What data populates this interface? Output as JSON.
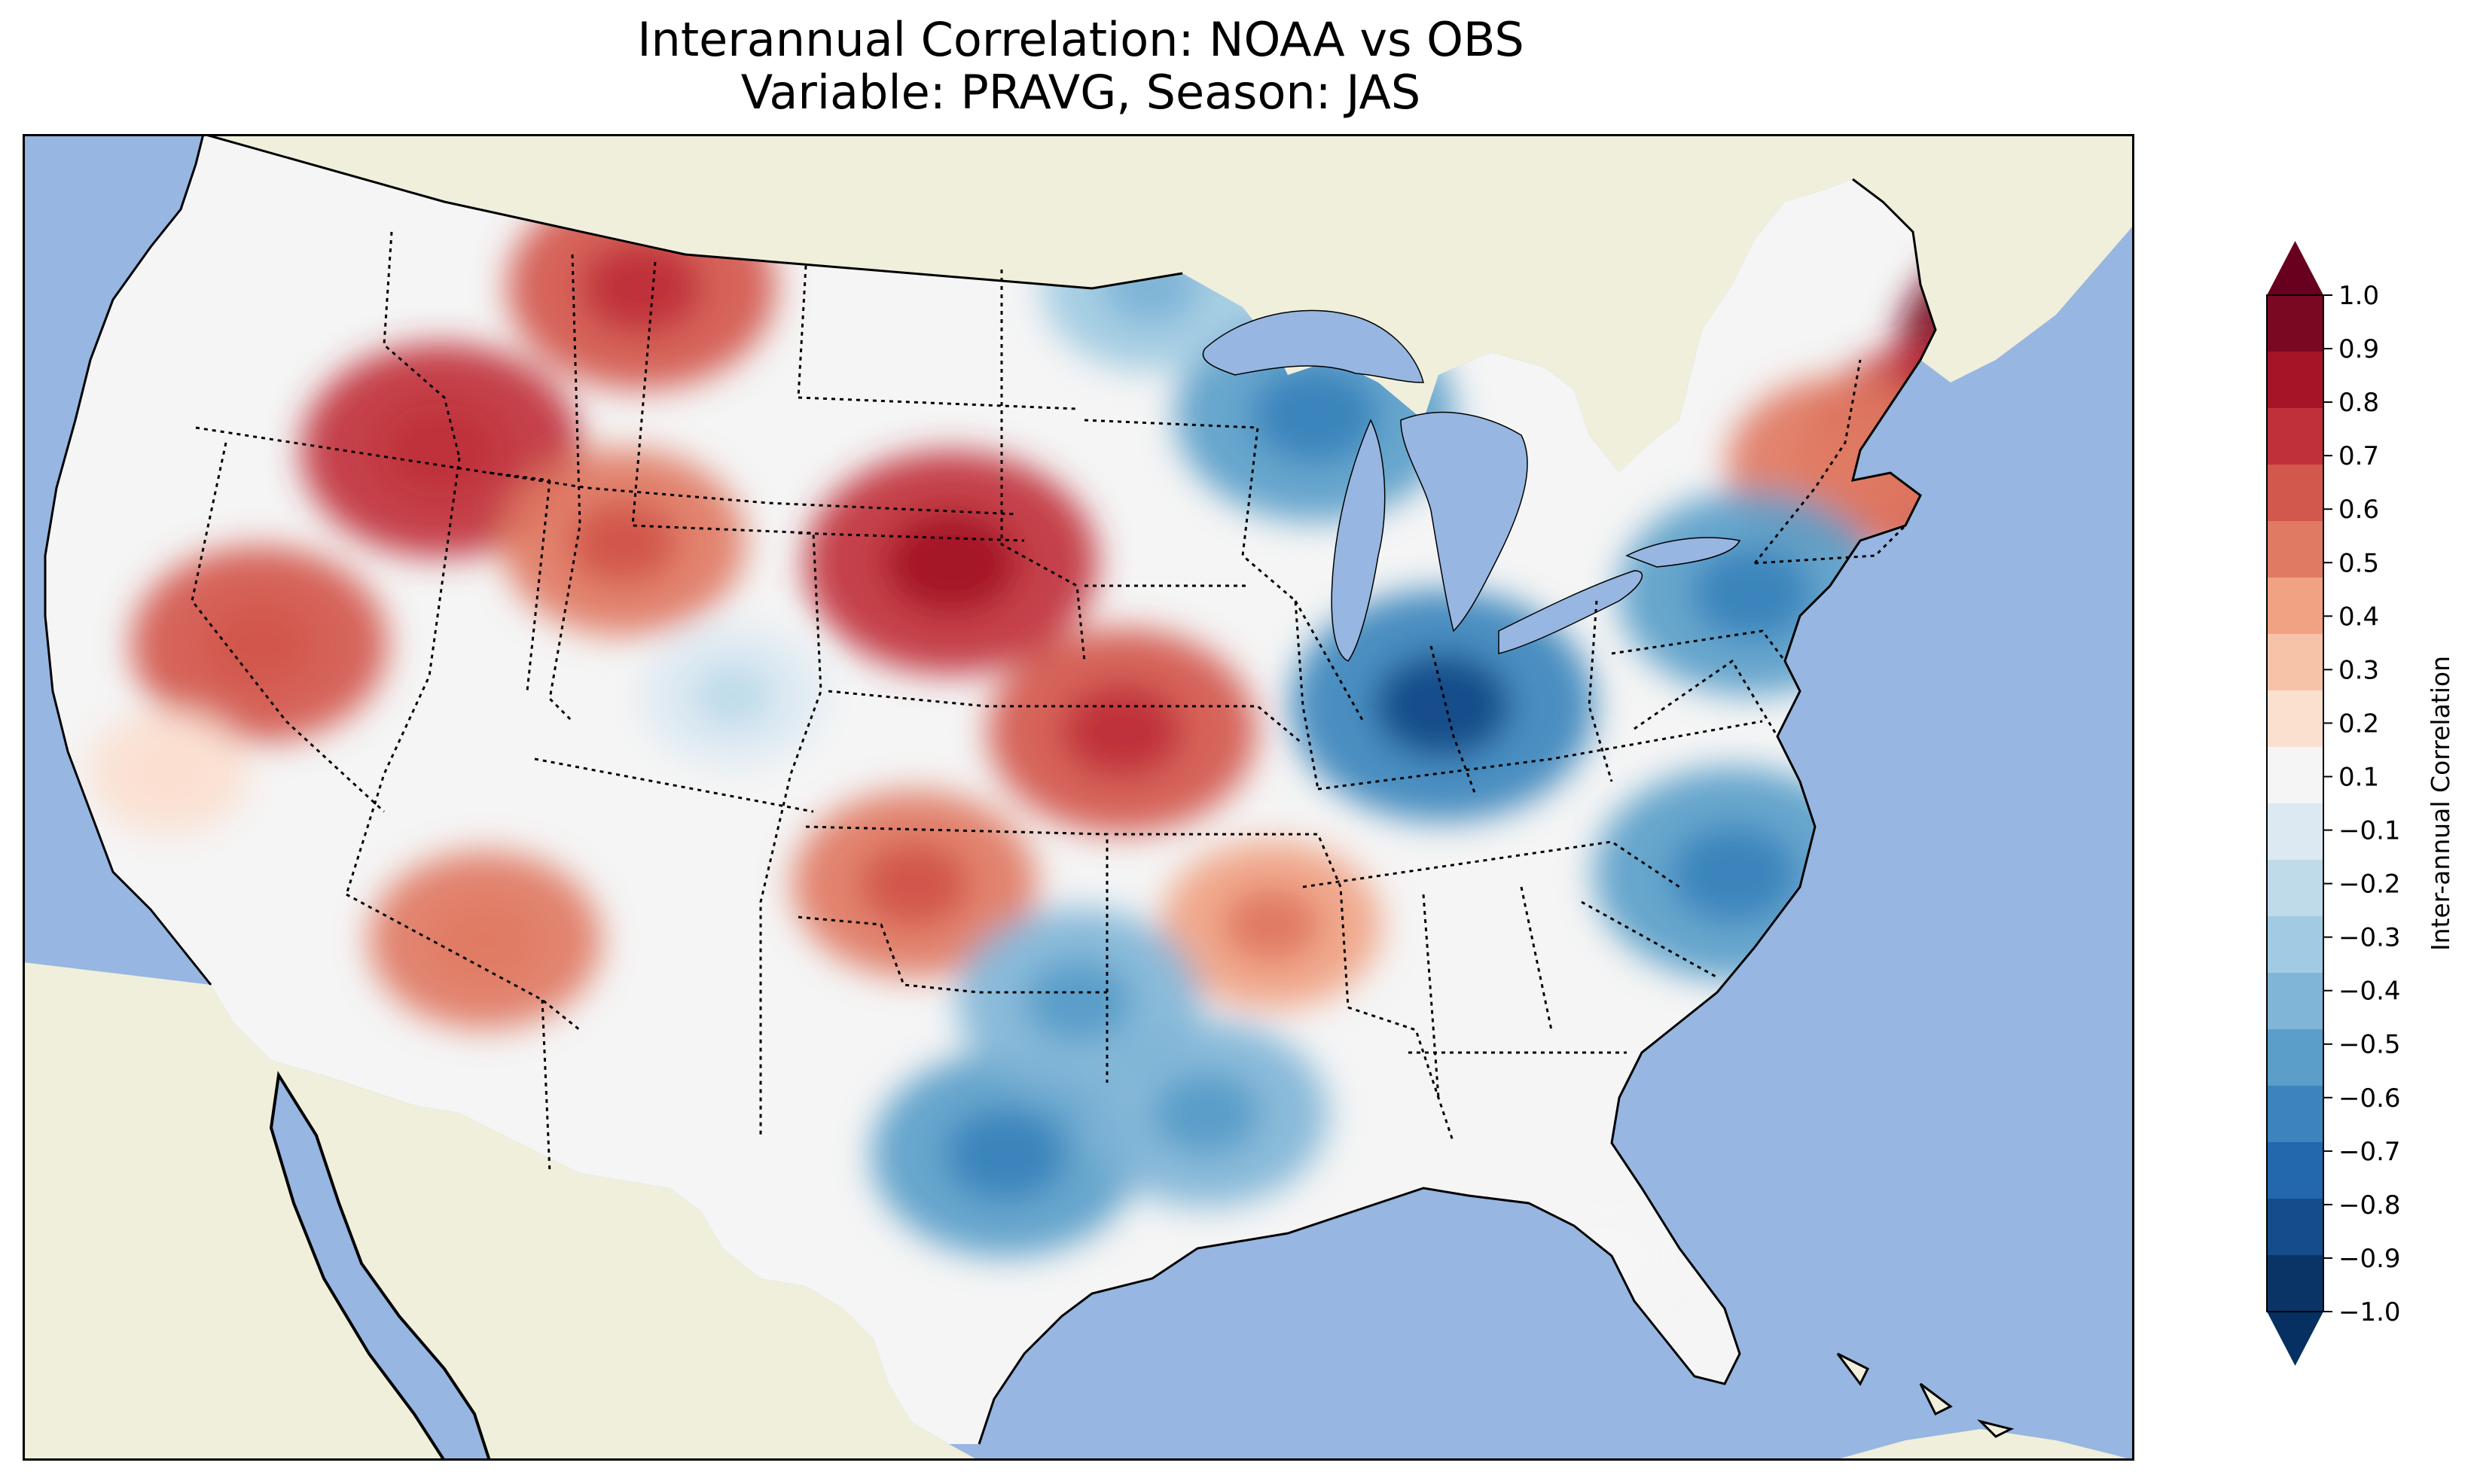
{
  "title": {
    "line1": "Interannual Correlation: NOAA vs OBS",
    "line2": "Variable: PRAVG, Season: JAS"
  },
  "colors": {
    "ocean": "#97b6e1",
    "land": "#efefdb",
    "state_border": "#000000",
    "coast": "#000000"
  },
  "colorbar": {
    "label": "Inter-annual Correlation",
    "ticks": [
      "1.0",
      "0.9",
      "0.8",
      "0.7",
      "0.6",
      "0.5",
      "0.4",
      "0.3",
      "0.2",
      "0.1",
      "−0.1",
      "−0.2",
      "−0.3",
      "−0.4",
      "−0.5",
      "−0.6",
      "−0.7",
      "−0.8",
      "−0.9",
      "−1.0"
    ],
    "colors": [
      "#7a0822",
      "#a51427",
      "#c0303b",
      "#d2574c",
      "#e07a63",
      "#f0a283",
      "#f7c3a8",
      "#fbe0d0",
      "#f5f5f5",
      "#dce9f2",
      "#bfdbea",
      "#a0cbe2",
      "#80b5d7",
      "#5a9ec9",
      "#3b84bc",
      "#2367ac",
      "#154d8a",
      "#0b3466"
    ],
    "extend_max_color": "#67001f",
    "extend_min_color": "#053061"
  },
  "chart_data": {
    "type": "heatmap",
    "title": "Interannual Correlation: NOAA vs OBS / Variable: PRAVG, Season: JAS",
    "colorbar_label": "Inter-annual Correlation",
    "vmin": -1.0,
    "vmax": 1.0,
    "levels": [
      -1.0,
      -0.9,
      -0.8,
      -0.7,
      -0.6,
      -0.5,
      -0.4,
      -0.3,
      -0.2,
      -0.1,
      0.1,
      0.2,
      0.3,
      0.4,
      0.5,
      0.6,
      0.7,
      0.8,
      0.9,
      1.0
    ],
    "regions": [
      {
        "name": "Maine",
        "lon": -69.0,
        "lat": 45.8,
        "value": 0.8
      },
      {
        "name": "Vermont / New Hampshire",
        "lon": -72.3,
        "lat": 43.8,
        "value": 0.6
      },
      {
        "name": "Upstate New York",
        "lon": -75.0,
        "lat": 43.5,
        "value": 0.4
      },
      {
        "name": "Montana central",
        "lon": -108.0,
        "lat": 47.0,
        "value": 0.55
      },
      {
        "name": "Idaho / NW Wyoming",
        "lon": -113.5,
        "lat": 43.8,
        "value": 0.6
      },
      {
        "name": "Southwest Wyoming",
        "lon": -108.5,
        "lat": 42.0,
        "value": 0.45
      },
      {
        "name": "Nebraska",
        "lon": -99.5,
        "lat": 41.6,
        "value": 0.65
      },
      {
        "name": "Northeast Kansas / Missouri border",
        "lon": -94.8,
        "lat": 38.3,
        "value": 0.55
      },
      {
        "name": "Northeast Nevada",
        "lon": -118.5,
        "lat": 40.0,
        "value": 0.5
      },
      {
        "name": "Arizona",
        "lon": -112.3,
        "lat": 34.2,
        "value": 0.4
      },
      {
        "name": "Texas Panhandle / West Oklahoma",
        "lon": -100.5,
        "lat": 35.3,
        "value": 0.45
      },
      {
        "name": "Arkansas / Mississippi",
        "lon": -90.7,
        "lat": 34.5,
        "value": 0.35
      },
      {
        "name": "Wisconsin",
        "lon": -89.5,
        "lat": 44.5,
        "value": -0.6
      },
      {
        "name": "Ohio Valley",
        "lon": -86.0,
        "lat": 38.8,
        "value": -0.7
      },
      {
        "name": "Pennsylvania",
        "lon": -77.5,
        "lat": 41.0,
        "value": -0.55
      },
      {
        "name": "North Carolina",
        "lon": -78.0,
        "lat": 35.5,
        "value": -0.6
      },
      {
        "name": "Central Texas",
        "lon": -98.0,
        "lat": 30.0,
        "value": -0.55
      },
      {
        "name": "North Texas / Oklahoma",
        "lon": -96.0,
        "lat": 33.0,
        "value": -0.45
      },
      {
        "name": "Minnesota",
        "lon": -94.0,
        "lat": 47.0,
        "value": -0.35
      },
      {
        "name": "Louisiana",
        "lon": -92.5,
        "lat": 30.8,
        "value": -0.45
      },
      {
        "name": "Colorado",
        "lon": -105.5,
        "lat": 39.0,
        "value": -0.2
      },
      {
        "name": "California coast",
        "lon": -121.0,
        "lat": 37.5,
        "value": 0.1
      },
      {
        "name": "Florida",
        "lon": -81.5,
        "lat": 28.0,
        "value": 0.05
      }
    ]
  }
}
